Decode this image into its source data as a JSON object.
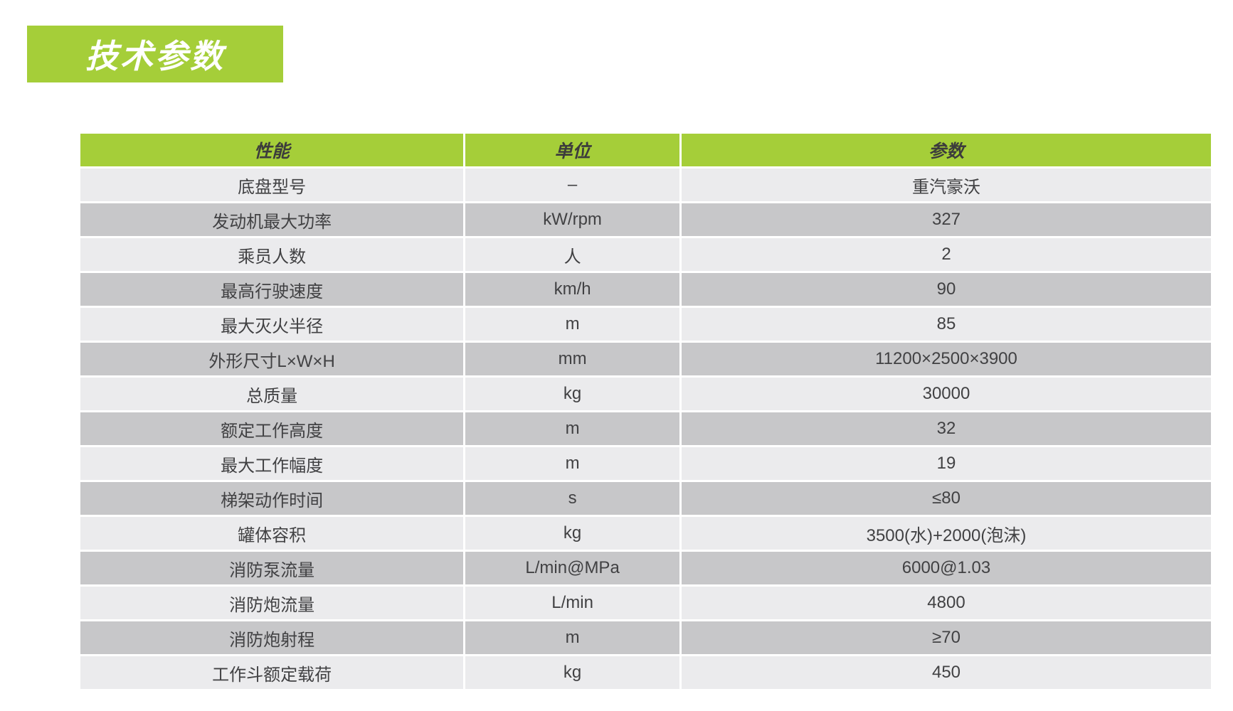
{
  "title": {
    "text": "技术参数"
  },
  "table": {
    "headers": [
      {
        "label": "性能"
      },
      {
        "label": "单位"
      },
      {
        "label": "参数"
      }
    ],
    "rows": [
      {
        "performance": "底盘型号",
        "unit": "–",
        "parameter": "重汽豪沃"
      },
      {
        "performance": "发动机最大功率",
        "unit": "kW/rpm",
        "parameter": "327"
      },
      {
        "performance": "乘员人数",
        "unit": "人",
        "parameter": "2"
      },
      {
        "performance": "最高行驶速度",
        "unit": "km/h",
        "parameter": "90"
      },
      {
        "performance": "最大灭火半径",
        "unit": "m",
        "parameter": "85"
      },
      {
        "performance": "外形尺寸L×W×H",
        "unit": "mm",
        "parameter": "11200×2500×3900"
      },
      {
        "performance": "总质量",
        "unit": "kg",
        "parameter": "30000"
      },
      {
        "performance": "额定工作高度",
        "unit": "m",
        "parameter": "32"
      },
      {
        "performance": "最大工作幅度",
        "unit": "m",
        "parameter": "19"
      },
      {
        "performance": "梯架动作时间",
        "unit": "s",
        "parameter": "≤80"
      },
      {
        "performance": "罐体容积",
        "unit": "kg",
        "parameter": "3500(水)+2000(泡沫)"
      },
      {
        "performance": "消防泵流量",
        "unit": "L/min@MPa",
        "parameter": "6000@1.03"
      },
      {
        "performance": "消防炮流量",
        "unit": "L/min",
        "parameter": "4800"
      },
      {
        "performance": "消防炮射程",
        "unit": "m",
        "parameter": "≥70"
      },
      {
        "performance": "工作斗额定载荷",
        "unit": "kg",
        "parameter": "450"
      }
    ],
    "colors": {
      "header_bg": "#a5ce39",
      "header_text": "#3c3c3c",
      "row_light": "#ebebed",
      "row_dark": "#c7c7c9",
      "cell_text": "#414143",
      "title_text": "#ffffff"
    }
  }
}
